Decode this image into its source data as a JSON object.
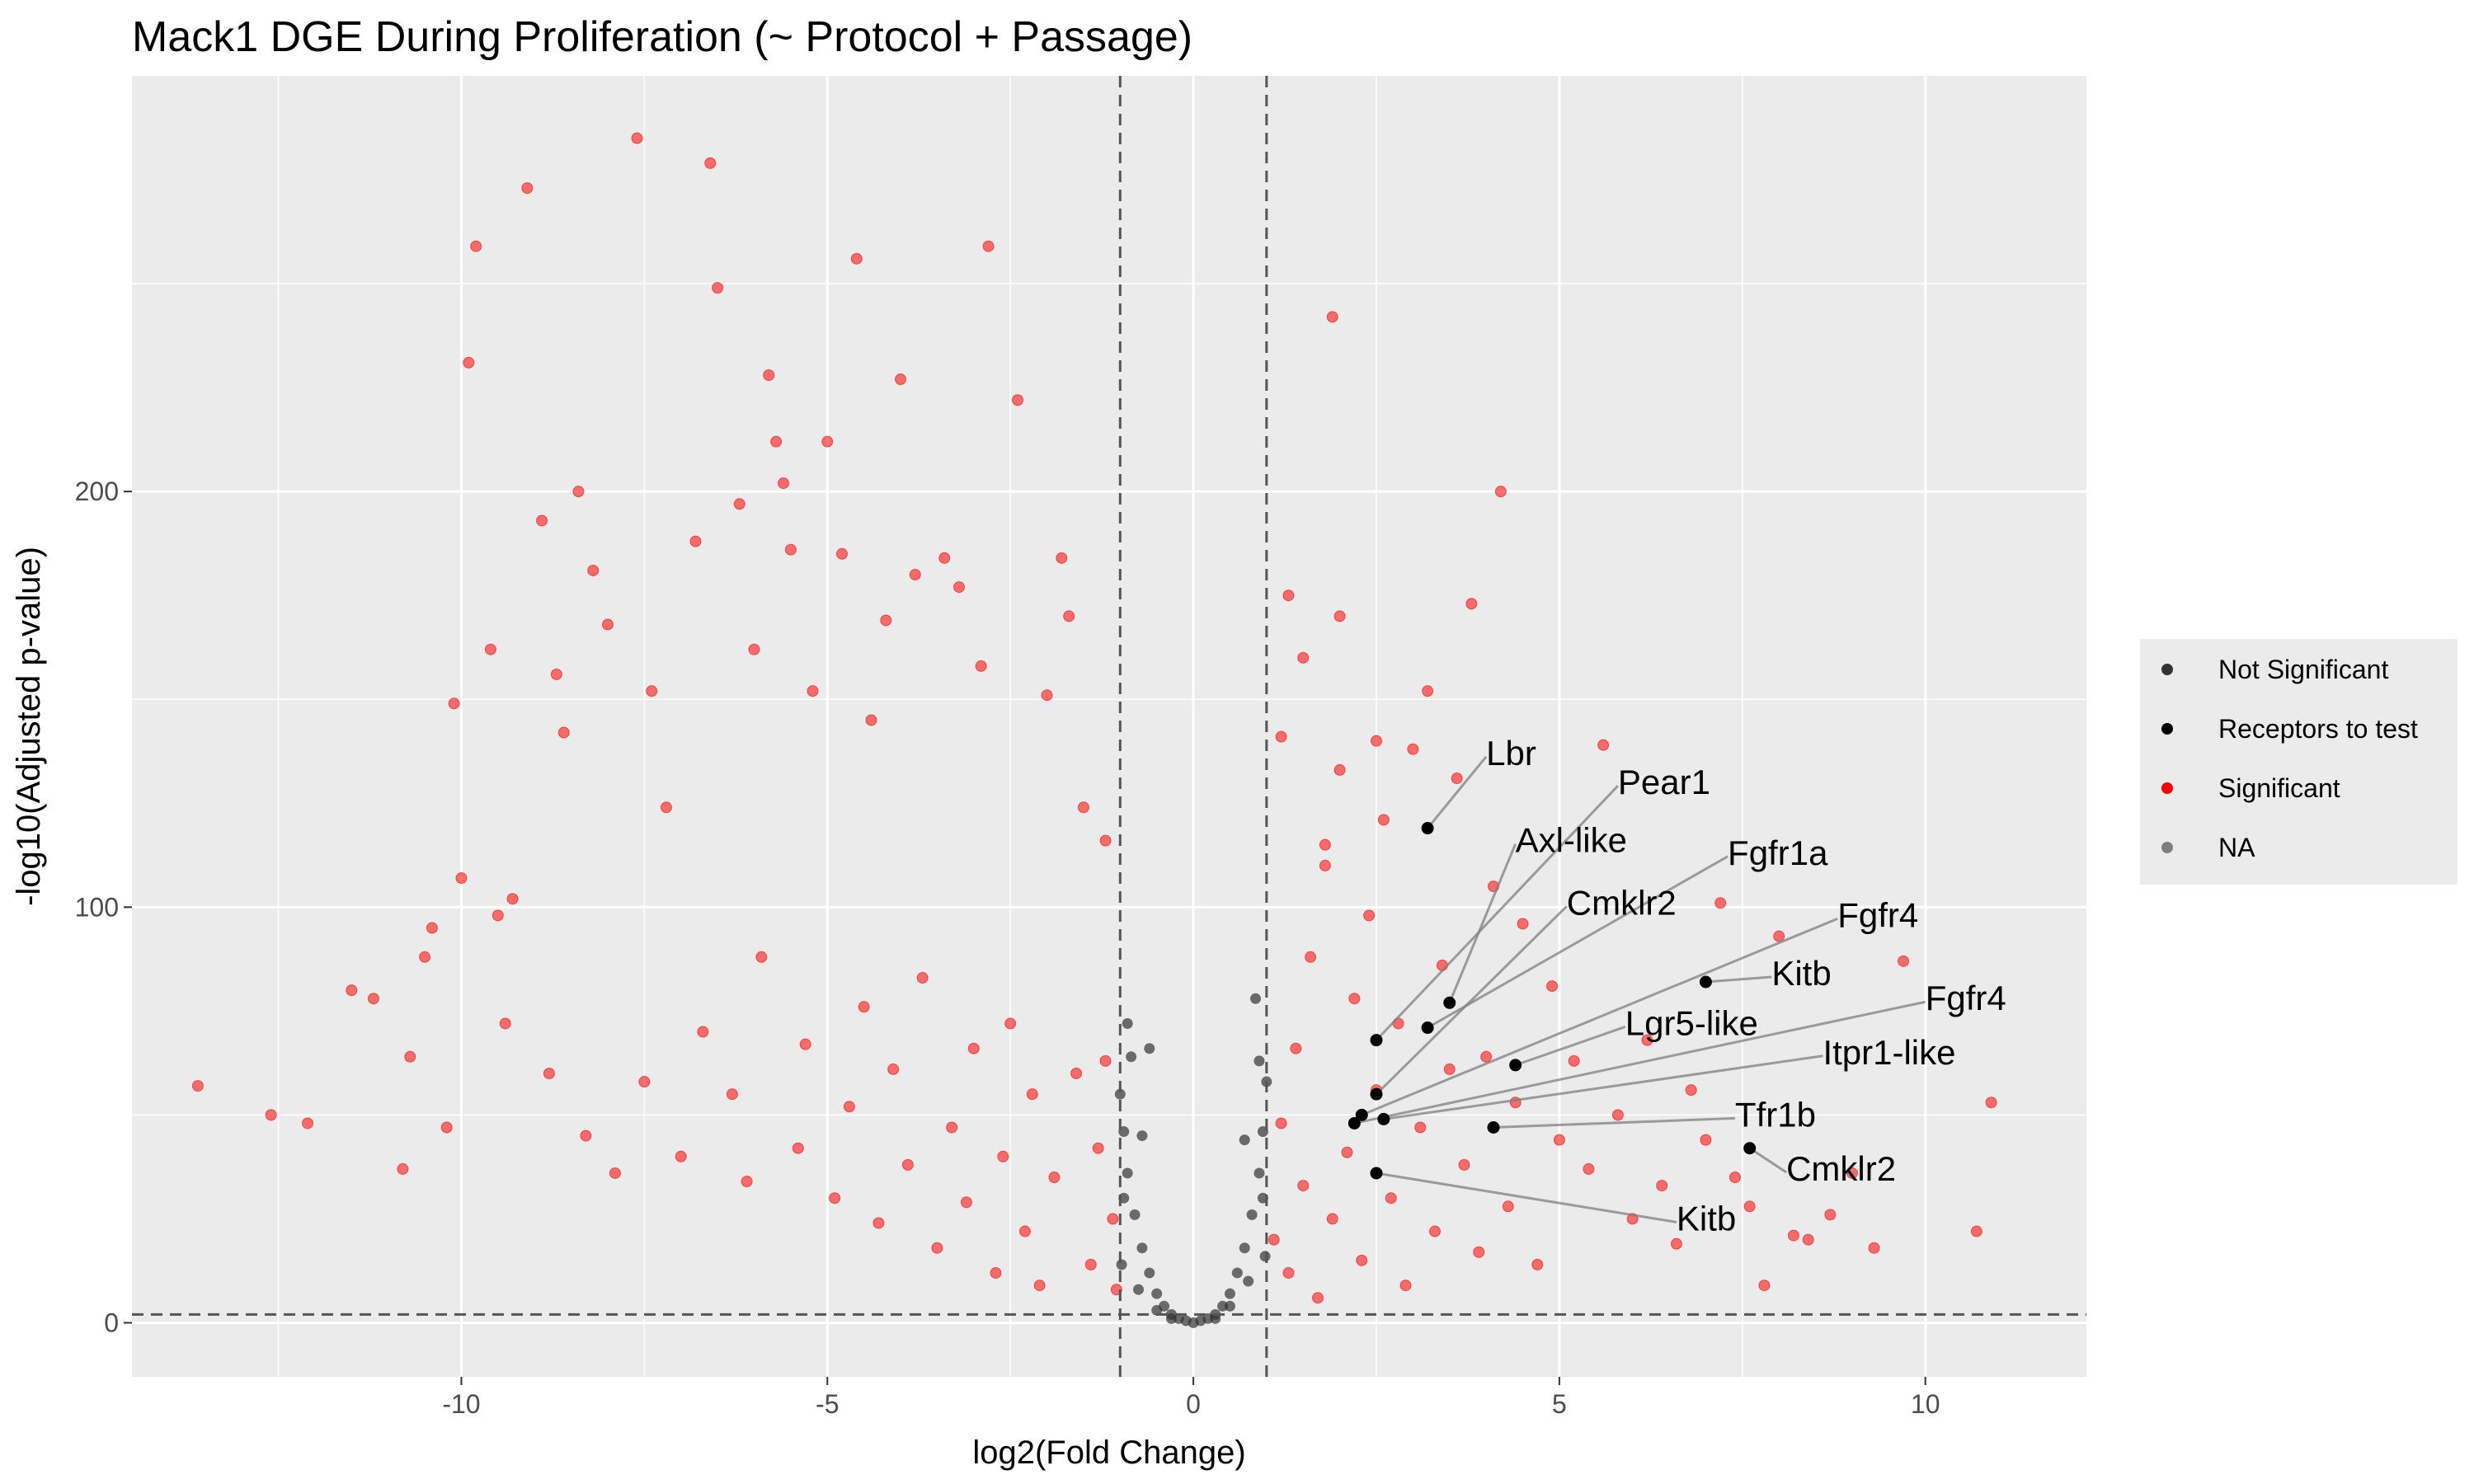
{
  "chart_data": {
    "type": "scatter",
    "title": "Mack1 DGE During Proliferation (~ Protocol + Passage)",
    "xlabel": "log2(Fold Change)",
    "ylabel": "-log10(Adjusted p-value)",
    "xlim": [
      -14.5,
      12.2
    ],
    "ylim": [
      -13,
      300
    ],
    "xticks": [
      -10,
      -5,
      0,
      5,
      10
    ],
    "xtick_labels": [
      "-10",
      "-5",
      "0",
      "5",
      "10"
    ],
    "yticks": [
      0,
      100,
      200
    ],
    "ytick_labels": [
      "0",
      "100",
      "200"
    ],
    "thresholds": {
      "log2fc": [
        -1,
        1
      ],
      "neg_log10_padj": 2
    },
    "grid": true,
    "legend_position": "right",
    "legend": [
      {
        "label": "Not Significant",
        "color": "#333333"
      },
      {
        "label": "Receptors to test",
        "color": "#000000"
      },
      {
        "label": "Significant",
        "color": "#ff0000"
      },
      {
        "label": "NA",
        "color": "#7f7f7f"
      }
    ],
    "colors": {
      "panel": "#ebebeb",
      "grid": "#ffffff",
      "significant": "#ff0000",
      "not_significant": "#333333",
      "receptor": "#000000"
    },
    "significant_points": [
      [
        -13.6,
        57
      ],
      [
        -12.6,
        50
      ],
      [
        -12.1,
        48
      ],
      [
        -11.5,
        80
      ],
      [
        -11.2,
        78
      ],
      [
        -10.8,
        37
      ],
      [
        -10.7,
        64
      ],
      [
        -10.5,
        88
      ],
      [
        -10.4,
        95
      ],
      [
        -10.2,
        47
      ],
      [
        -10.1,
        149
      ],
      [
        -10.0,
        107
      ],
      [
        -9.9,
        231
      ],
      [
        -9.8,
        259
      ],
      [
        -9.6,
        162
      ],
      [
        -9.5,
        98
      ],
      [
        -9.3,
        102
      ],
      [
        -9.1,
        273
      ],
      [
        -8.9,
        193
      ],
      [
        -8.7,
        156
      ],
      [
        -8.6,
        142
      ],
      [
        -8.4,
        200
      ],
      [
        -8.2,
        181
      ],
      [
        -8.0,
        168
      ],
      [
        -7.6,
        285
      ],
      [
        -7.4,
        152
      ],
      [
        -7.2,
        124
      ],
      [
        -6.8,
        188
      ],
      [
        -6.6,
        279
      ],
      [
        -6.5,
        249
      ],
      [
        -6.2,
        197
      ],
      [
        -6.0,
        162
      ],
      [
        -5.8,
        228
      ],
      [
        -5.7,
        212
      ],
      [
        -5.6,
        202
      ],
      [
        -5.5,
        186
      ],
      [
        -5.2,
        152
      ],
      [
        -5.0,
        212
      ],
      [
        -4.8,
        185
      ],
      [
        -4.6,
        256
      ],
      [
        -4.4,
        145
      ],
      [
        -4.2,
        169
      ],
      [
        -4.0,
        227
      ],
      [
        -3.8,
        180
      ],
      [
        -3.4,
        184
      ],
      [
        -3.2,
        177
      ],
      [
        -2.9,
        158
      ],
      [
        -2.8,
        259
      ],
      [
        -2.4,
        222
      ],
      [
        -2.0,
        151
      ],
      [
        -1.8,
        184
      ],
      [
        -1.7,
        170
      ],
      [
        -1.5,
        124
      ],
      [
        -1.2,
        116
      ],
      [
        -9.4,
        72
      ],
      [
        -8.8,
        60
      ],
      [
        -8.3,
        45
      ],
      [
        -7.9,
        36
      ],
      [
        -7.5,
        58
      ],
      [
        -7.0,
        40
      ],
      [
        -6.7,
        70
      ],
      [
        -6.3,
        55
      ],
      [
        -6.1,
        34
      ],
      [
        -5.9,
        88
      ],
      [
        -5.4,
        42
      ],
      [
        -5.3,
        67
      ],
      [
        -4.9,
        30
      ],
      [
        -4.7,
        52
      ],
      [
        -4.5,
        76
      ],
      [
        -4.3,
        24
      ],
      [
        -4.1,
        61
      ],
      [
        -3.9,
        38
      ],
      [
        -3.7,
        83
      ],
      [
        -3.5,
        18
      ],
      [
        -3.3,
        47
      ],
      [
        -3.1,
        29
      ],
      [
        -3.0,
        66
      ],
      [
        -2.7,
        12
      ],
      [
        -2.6,
        40
      ],
      [
        -2.5,
        72
      ],
      [
        -2.3,
        22
      ],
      [
        -2.2,
        55
      ],
      [
        -2.1,
        9
      ],
      [
        -1.9,
        35
      ],
      [
        -1.6,
        60
      ],
      [
        -1.4,
        14
      ],
      [
        -1.3,
        42
      ],
      [
        -1.1,
        25
      ],
      [
        -1.05,
        8
      ],
      [
        -1.2,
        63
      ],
      [
        1.1,
        20
      ],
      [
        1.2,
        48
      ],
      [
        1.3,
        12
      ],
      [
        1.4,
        66
      ],
      [
        1.5,
        33
      ],
      [
        1.6,
        88
      ],
      [
        1.7,
        6
      ],
      [
        1.8,
        110
      ],
      [
        1.9,
        25
      ],
      [
        2.0,
        133
      ],
      [
        2.1,
        41
      ],
      [
        2.2,
        78
      ],
      [
        2.3,
        15
      ],
      [
        2.4,
        98
      ],
      [
        2.5,
        56
      ],
      [
        2.6,
        121
      ],
      [
        2.7,
        30
      ],
      [
        2.8,
        72
      ],
      [
        2.9,
        9
      ],
      [
        3.0,
        138
      ],
      [
        3.1,
        47
      ],
      [
        3.2,
        152
      ],
      [
        3.3,
        22
      ],
      [
        3.4,
        86
      ],
      [
        3.5,
        61
      ],
      [
        3.6,
        131
      ],
      [
        3.7,
        38
      ],
      [
        3.8,
        173
      ],
      [
        3.9,
        17
      ],
      [
        4.0,
        64
      ],
      [
        4.1,
        105
      ],
      [
        4.2,
        200
      ],
      [
        4.3,
        28
      ],
      [
        4.4,
        53
      ],
      [
        4.5,
        96
      ],
      [
        4.7,
        14
      ],
      [
        4.9,
        81
      ],
      [
        5.0,
        44
      ],
      [
        5.2,
        63
      ],
      [
        5.4,
        37
      ],
      [
        5.6,
        139
      ],
      [
        5.8,
        50
      ],
      [
        6.0,
        25
      ],
      [
        6.2,
        68
      ],
      [
        6.4,
        33
      ],
      [
        6.6,
        19
      ],
      [
        6.8,
        56
      ],
      [
        7.0,
        44
      ],
      [
        7.2,
        101
      ],
      [
        7.4,
        35
      ],
      [
        7.6,
        28
      ],
      [
        7.8,
        9
      ],
      [
        8.0,
        93
      ],
      [
        8.2,
        21
      ],
      [
        8.4,
        20
      ],
      [
        8.7,
        26
      ],
      [
        9.0,
        36
      ],
      [
        9.3,
        18
      ],
      [
        9.7,
        87
      ],
      [
        10.7,
        22
      ],
      [
        10.9,
        53
      ],
      [
        1.9,
        242
      ],
      [
        1.3,
        175
      ],
      [
        2.0,
        170
      ],
      [
        1.5,
        160
      ],
      [
        1.2,
        141
      ],
      [
        1.8,
        115
      ],
      [
        2.5,
        140
      ]
    ],
    "not_significant_points": [
      [
        0,
        0
      ],
      [
        -0.1,
        0.5
      ],
      [
        0.1,
        0.5
      ],
      [
        -0.2,
        1
      ],
      [
        0.2,
        1
      ],
      [
        -0.3,
        2
      ],
      [
        0.3,
        2
      ],
      [
        -0.4,
        4
      ],
      [
        0.4,
        4
      ],
      [
        -0.5,
        7
      ],
      [
        0.5,
        7
      ],
      [
        -0.6,
        12
      ],
      [
        0.6,
        12
      ],
      [
        -0.7,
        18
      ],
      [
        0.7,
        18
      ],
      [
        -0.8,
        26
      ],
      [
        0.8,
        26
      ],
      [
        -0.9,
        36
      ],
      [
        0.9,
        36
      ],
      [
        -0.95,
        46
      ],
      [
        0.95,
        46
      ],
      [
        -1.0,
        55
      ],
      [
        1.0,
        58
      ],
      [
        -0.85,
        64
      ],
      [
        0.85,
        78
      ],
      [
        -0.6,
        66
      ],
      [
        -0.9,
        72
      ],
      [
        0.9,
        63
      ],
      [
        -0.75,
        8
      ],
      [
        0.75,
        10
      ],
      [
        -0.5,
        3
      ],
      [
        0.5,
        4
      ],
      [
        -0.3,
        1
      ],
      [
        0.3,
        1
      ],
      [
        -0.95,
        30
      ],
      [
        0.95,
        30
      ],
      [
        -0.98,
        14
      ],
      [
        0.98,
        16
      ],
      [
        -0.7,
        45
      ],
      [
        0.7,
        44
      ]
    ],
    "receptors_to_test": [
      {
        "label": "Lbr",
        "x": 3.2,
        "y": 119
      },
      {
        "label": "Pear1",
        "x": 2.5,
        "y": 68
      },
      {
        "label": "Axl-like",
        "x": 3.5,
        "y": 77
      },
      {
        "label": "Fgfr1a",
        "x": 3.2,
        "y": 71
      },
      {
        "label": "Cmklr2",
        "x": 2.5,
        "y": 55
      },
      {
        "label": "Fgfr4",
        "x": 2.3,
        "y": 50
      },
      {
        "label": "Kitb",
        "x": 7.0,
        "y": 82
      },
      {
        "label": "Fgfr4",
        "x": 2.2,
        "y": 48
      },
      {
        "label": "Lgr5-like",
        "x": 4.4,
        "y": 62
      },
      {
        "label": "Itpr1-like",
        "x": 2.6,
        "y": 49
      },
      {
        "label": "Tfr1b",
        "x": 4.1,
        "y": 47
      },
      {
        "label": "Cmklr2",
        "x": 7.6,
        "y": 42
      },
      {
        "label": "Kitb",
        "x": 2.5,
        "y": 36
      }
    ]
  }
}
